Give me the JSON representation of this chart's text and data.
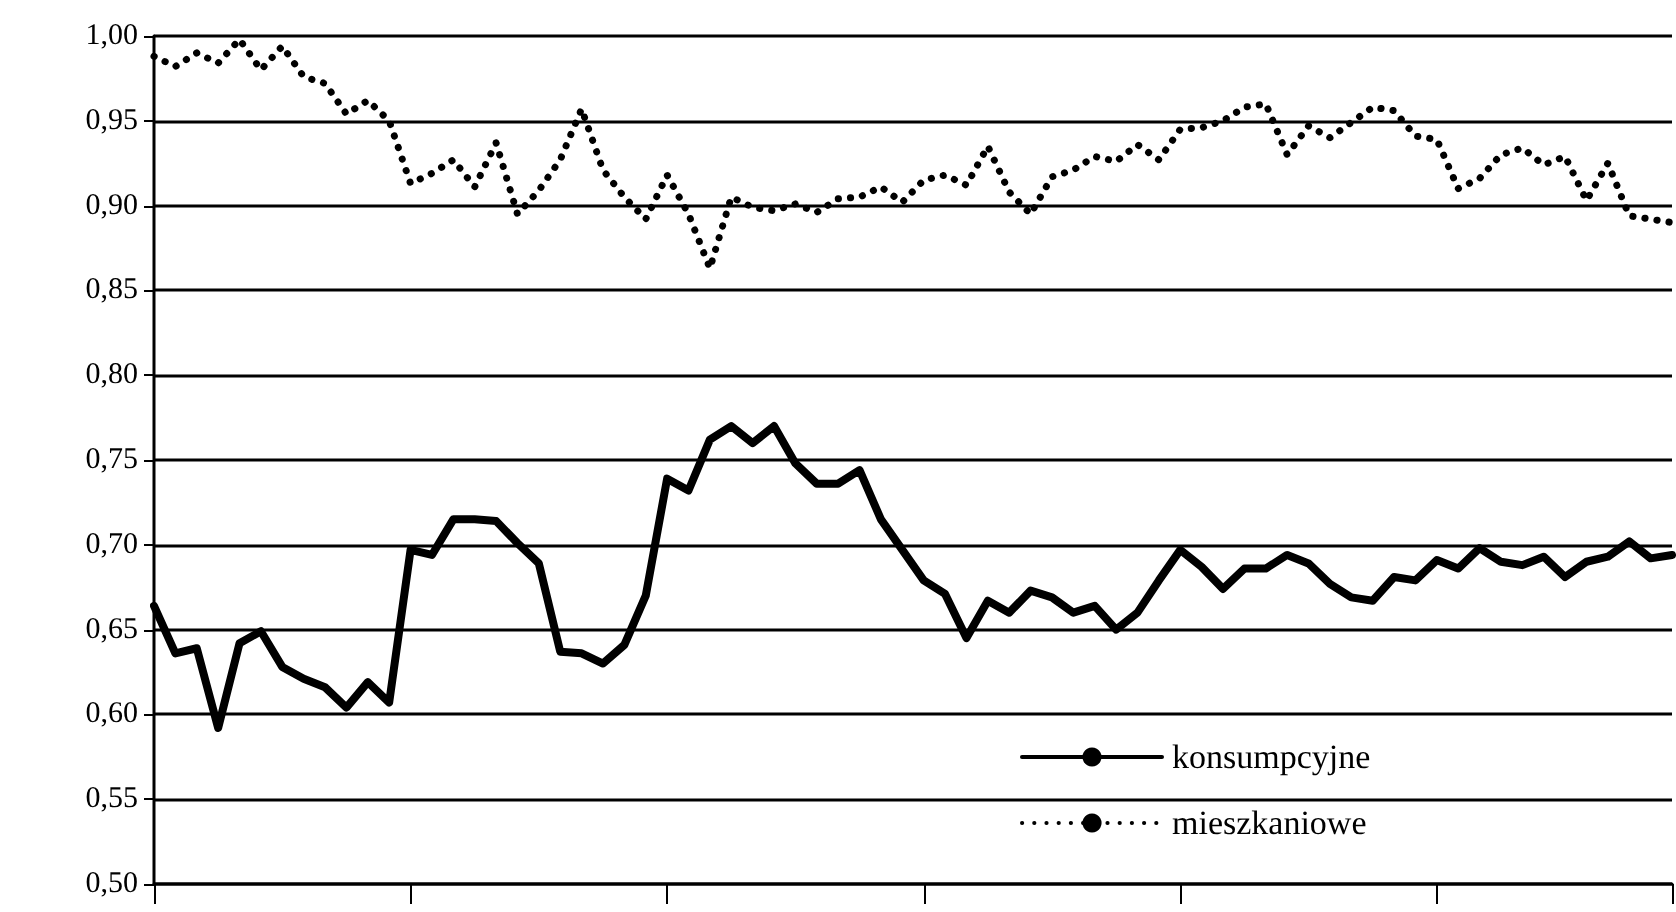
{
  "chart_data": {
    "type": "line",
    "categories": [
      null,
      null,
      null,
      null,
      null,
      null,
      null,
      null,
      null,
      null,
      null,
      null,
      null,
      null,
      null,
      null,
      null,
      null,
      null,
      null,
      null,
      null,
      null,
      null,
      null,
      null,
      null,
      null,
      null,
      null,
      null,
      null,
      null,
      null,
      null,
      null,
      null,
      null,
      null,
      null,
      null,
      null,
      null,
      null,
      null,
      null,
      null,
      null,
      null,
      null,
      null,
      null,
      null,
      null,
      null,
      null,
      null,
      null,
      null,
      null,
      null,
      null,
      null,
      null,
      null,
      null,
      null,
      null,
      null,
      null,
      null,
      null
    ],
    "series": [
      {
        "name": "konsumpcyjne",
        "color": "#000000",
        "line_style": "solid",
        "values": [
          0.664,
          0.636,
          0.639,
          0.592,
          0.642,
          0.649,
          0.628,
          0.621,
          0.616,
          0.604,
          0.619,
          0.607,
          0.697,
          0.694,
          0.715,
          0.715,
          0.714,
          0.701,
          0.689,
          0.637,
          0.636,
          0.63,
          0.641,
          0.67,
          0.739,
          0.732,
          0.762,
          0.77,
          0.76,
          0.77,
          0.748,
          0.736,
          0.736,
          0.744,
          0.715,
          0.697,
          0.679,
          0.671,
          0.645,
          0.667,
          0.66,
          0.673,
          0.669,
          0.66,
          0.664,
          0.65,
          0.66,
          0.679,
          0.697,
          0.687,
          0.674,
          0.686,
          0.686,
          0.694,
          0.689,
          0.677,
          0.669,
          0.667,
          0.681,
          0.679,
          0.691,
          0.686,
          0.698,
          0.69,
          0.688,
          0.693,
          0.681,
          0.69,
          0.693,
          0.702,
          0.692,
          0.694
        ]
      },
      {
        "name": "mieszkaniowe",
        "color": "#000000",
        "line_style": "dotted",
        "values": [
          0.988,
          0.982,
          0.99,
          0.984,
          0.998,
          0.98,
          0.994,
          0.976,
          0.972,
          0.954,
          0.962,
          0.95,
          0.913,
          0.919,
          0.927,
          0.911,
          0.937,
          0.895,
          0.909,
          0.927,
          0.957,
          0.921,
          0.905,
          0.892,
          0.918,
          0.895,
          0.863,
          0.905,
          0.899,
          0.897,
          0.901,
          0.896,
          0.904,
          0.905,
          0.911,
          0.902,
          0.915,
          0.918,
          0.912,
          0.935,
          0.908,
          0.895,
          0.917,
          0.921,
          0.929,
          0.926,
          0.936,
          0.927,
          0.945,
          0.946,
          0.95,
          0.958,
          0.96,
          0.93,
          0.947,
          0.94,
          0.949,
          0.958,
          0.956,
          0.941,
          0.939,
          0.91,
          0.916,
          0.93,
          0.934,
          0.924,
          0.929,
          0.903,
          0.925,
          0.894,
          0.892,
          0.89
        ]
      }
    ],
    "ylim": [
      0.5,
      1.0
    ],
    "yticks": [
      {
        "value": 0.5,
        "label": "0,50"
      },
      {
        "value": 0.55,
        "label": "0,55"
      },
      {
        "value": 0.6,
        "label": "0,60"
      },
      {
        "value": 0.65,
        "label": "0,65"
      },
      {
        "value": 0.7,
        "label": "0,70"
      },
      {
        "value": 0.75,
        "label": "0,75"
      },
      {
        "value": 0.8,
        "label": "0,80"
      },
      {
        "value": 0.85,
        "label": "0,85"
      },
      {
        "value": 0.9,
        "label": "0,90"
      },
      {
        "value": 0.95,
        "label": "0,95"
      },
      {
        "value": 1.0,
        "label": "1,00"
      }
    ],
    "grid": "y",
    "legend": "bottom right",
    "marker": "none",
    "tick_labels": "y"
  }
}
